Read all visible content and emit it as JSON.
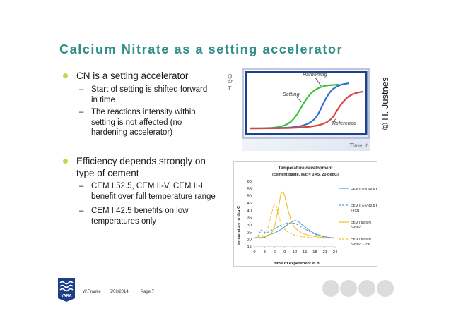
{
  "slide": {
    "title": "Calcium Nitrate as a setting accelerator",
    "copyright": "© H. Justnes"
  },
  "bullets": [
    {
      "text": "CN is a setting accelerator"
    },
    {
      "text": "Efficiency depends strongly on type of cement"
    }
  ],
  "subbullets": [
    {
      "lines": [
        "Start of setting is shifted forward",
        "in time"
      ]
    },
    {
      "lines": [
        "The reactions intensity within",
        "setting is not affected (no",
        "hardening accelerator)"
      ]
    },
    {
      "lines": [
        "CEM I 52.5, CEM II-V, CEM II-L",
        "benefit over full temperature range"
      ]
    },
    {
      "lines": [
        "CEM I 42.5 benefits on low",
        "temperatures only"
      ]
    }
  ],
  "diagram": {
    "y_label_1": "Q",
    "y_label_2": "or",
    "y_label_3": "T",
    "x_label": "Time, t",
    "curve_labels": {
      "hardening": "Hardening",
      "setting": "Setting",
      "reference": "Reference"
    },
    "colors": {
      "hardening": "#2f6fcf",
      "setting": "#39c43a",
      "reference": "#d9443f",
      "frame": "#1f3f8f",
      "border": "#9aa8c8"
    }
  },
  "chart_data": {
    "type": "line",
    "title": "Temperature development",
    "subtitle": "(cement paste, w/c = 0.45, 20 degC)",
    "xlabel": "time of experiment in h",
    "ylabel": "temperature in deg C",
    "x_ticks": [
      0,
      3,
      6,
      9,
      12,
      15,
      18,
      21,
      24
    ],
    "y_ticks": [
      15,
      20,
      25,
      30,
      35,
      40,
      45,
      50,
      55,
      60
    ],
    "xlim": [
      0,
      24
    ],
    "ylim": [
      15,
      60
    ],
    "legend_position": "right",
    "series": [
      {
        "name": "CEM II A-V 42.5 R",
        "color": "#5a9bd5",
        "dash": "solid",
        "x": [
          0,
          1,
          2,
          3,
          4,
          6,
          8,
          10,
          11,
          12,
          13,
          14,
          16,
          18,
          20,
          22,
          24
        ],
        "y": [
          21,
          21,
          21,
          21.5,
          23,
          24.5,
          27,
          30.5,
          32,
          33,
          32.5,
          30.5,
          27,
          24,
          22.5,
          21.5,
          21
        ]
      },
      {
        "name": "CEM II A-V 42.5 R + ICN",
        "color": "#5a9bd5",
        "dash": "dashed",
        "x": [
          0,
          1,
          2,
          3,
          4,
          6,
          8,
          10,
          11,
          12,
          13,
          14,
          16,
          18,
          20,
          22,
          24
        ],
        "y": [
          21,
          22,
          26.5,
          25,
          25,
          27.5,
          30,
          31.5,
          31.5,
          31,
          30,
          28.5,
          26,
          23.5,
          22,
          21.5,
          21
        ]
      },
      {
        "name": "CEM I 52.5 N \"white\"",
        "color": "#f0c020",
        "dash": "solid",
        "x": [
          0,
          2,
          4,
          5,
          6,
          7,
          7.8,
          8.5,
          9,
          10,
          11,
          12,
          14,
          16,
          18,
          20,
          22,
          24
        ],
        "y": [
          21,
          21.5,
          22.5,
          24,
          29,
          40,
          51,
          53,
          50,
          40,
          32,
          28,
          24.5,
          23,
          22,
          21.5,
          21,
          21
        ]
      },
      {
        "name": "CEM I 52.5 N \"white\" + ICN",
        "color": "#f0c020",
        "dash": "dashed",
        "x": [
          0,
          2,
          3,
          4,
          5,
          5.8,
          6.5,
          7,
          8,
          9,
          10,
          12,
          14,
          16,
          18,
          20,
          22,
          24
        ],
        "y": [
          21,
          22,
          24,
          28,
          37,
          44.5,
          43,
          38,
          30,
          27,
          25,
          23,
          22,
          21.5,
          21,
          21,
          21,
          21
        ]
      }
    ]
  },
  "footer": {
    "author": "W.Franke",
    "date": "5/09/2014",
    "page": "Page 7"
  }
}
